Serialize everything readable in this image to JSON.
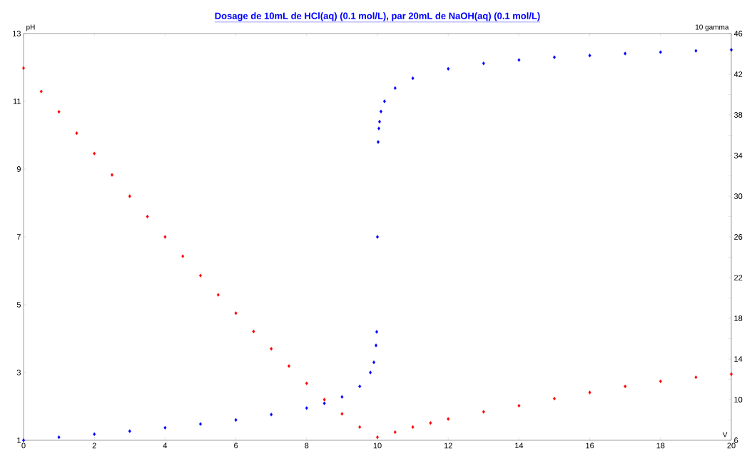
{
  "chart_data": {
    "type": "scatter",
    "title": "Dosage de 10mL de HCl(aq) (0.1 mol/L),  par 20mL  de NaOH(aq) (0.1 mol/L)",
    "xlabel": "V",
    "ylabel": "pH",
    "y2label": "10 gamma",
    "marker": "diamond",
    "xlim": [
      0,
      20
    ],
    "xticks": [
      0,
      2,
      4,
      6,
      8,
      10,
      12,
      14,
      16,
      18,
      20
    ],
    "ylim": [
      1,
      13
    ],
    "yticks": [
      1,
      3,
      5,
      7,
      9,
      11,
      13
    ],
    "y2lim": [
      6,
      46
    ],
    "y2ticks": [
      6,
      {
        "value": 8,
        "label": null
      },
      10,
      {
        "value": 12,
        "label": null
      },
      14,
      {
        "value": 16,
        "label": null
      },
      18,
      {
        "value": 20,
        "label": null
      },
      22,
      {
        "value": 24,
        "label": null
      },
      26,
      {
        "value": 28,
        "label": null
      },
      30,
      {
        "value": 32,
        "label": null
      },
      34,
      {
        "value": 36,
        "label": null
      },
      38,
      {
        "value": 40,
        "label": null
      },
      42,
      {
        "value": 44,
        "label": null
      },
      46
    ],
    "series": [
      {
        "color": "#0000ff",
        "x": [
          0,
          1,
          2,
          3,
          4,
          5,
          6,
          7,
          8,
          8.5,
          9,
          9.5,
          9.8,
          9.9,
          9.96,
          9.98,
          10,
          10.02,
          10.04,
          10.06,
          10.1,
          10.2,
          10.5,
          11,
          12,
          13,
          14,
          15,
          16,
          17,
          18,
          19,
          20
        ],
        "values": [
          1.0,
          1.09,
          1.18,
          1.27,
          1.37,
          1.48,
          1.6,
          1.76,
          1.95,
          2.09,
          2.28,
          2.59,
          3.0,
          3.3,
          3.8,
          4.2,
          7.0,
          9.8,
          10.2,
          10.4,
          10.7,
          11.0,
          11.39,
          11.68,
          11.96,
          12.12,
          12.22,
          12.3,
          12.35,
          12.41,
          12.45,
          12.49,
          12.52
        ]
      },
      {
        "color": "#ff0000",
        "axis": "y2",
        "x": [
          0,
          0.5,
          1,
          1.5,
          2,
          2.5,
          3,
          3.5,
          4,
          4.5,
          5,
          5.5,
          6,
          6.5,
          7,
          7.5,
          8,
          8.5,
          9,
          9.5,
          10,
          10.5,
          11,
          11.5,
          12,
          13,
          14,
          15,
          16,
          17,
          18,
          19,
          20
        ],
        "values": [
          42.6,
          40.3,
          38.3,
          36.2,
          34.2,
          32.1,
          30.0,
          28.0,
          26.0,
          24.1,
          22.2,
          20.3,
          18.5,
          16.7,
          15.0,
          13.3,
          11.6,
          10.0,
          8.6,
          7.3,
          6.3,
          6.8,
          7.3,
          7.7,
          8.1,
          8.8,
          9.4,
          10.1,
          10.7,
          11.3,
          11.8,
          12.2,
          12.5
        ]
      }
    ]
  }
}
